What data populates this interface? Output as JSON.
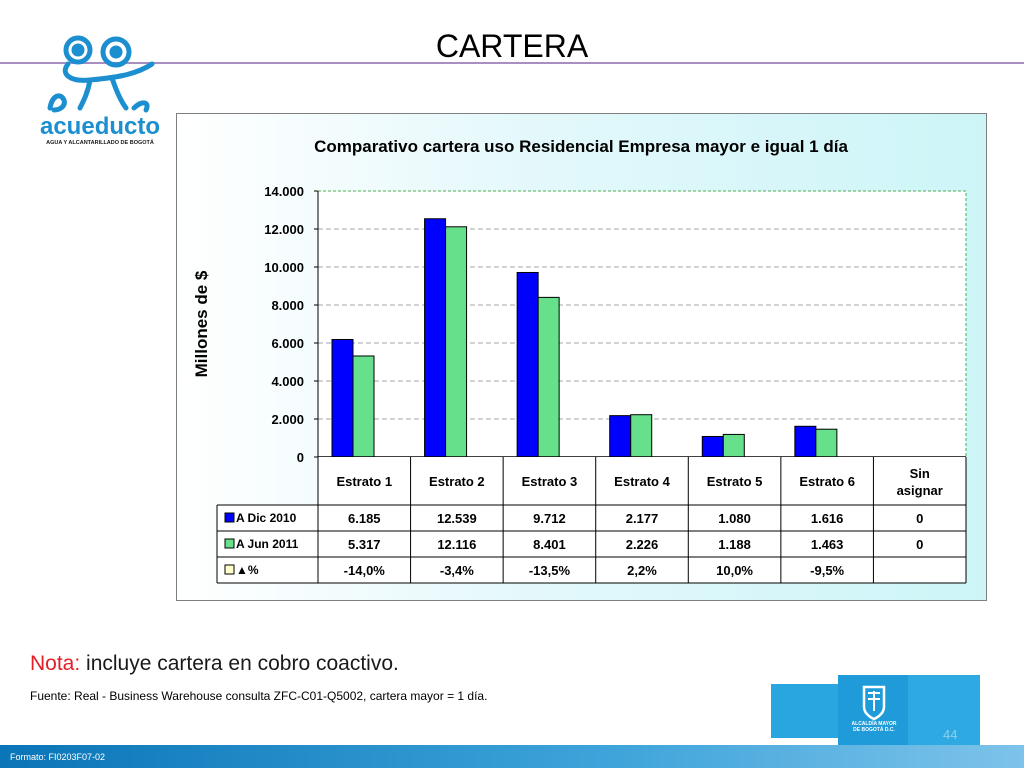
{
  "slide": {
    "title": "CARTERA",
    "nota_label": "Nota:",
    "nota_text": " incluye cartera en cobro coactivo.",
    "fuente": "Fuente: Real - Business Warehouse consulta ZFC-C01-Q5002, cartera mayor = 1 día.",
    "formato": "Formato: FI0203F07-02",
    "page_number": "44"
  },
  "logo": {
    "name": "acueducto",
    "tagline": "AGUA Y ALCANTARILLADO DE BOGOTÁ",
    "color": "#1c8fd0"
  },
  "seal": {
    "line1": "ALCALDÍA MAYOR",
    "line2": "DE BOGOTÁ D.C."
  },
  "chart_data": {
    "type": "bar",
    "title": "Comparativo cartera uso Residencial Empresa mayor e igual 1 día",
    "ylabel": "Millones de $",
    "xlabel": "",
    "ylim": [
      0,
      14000
    ],
    "y_ticks": [
      "0",
      "2.000",
      "4.000",
      "6.000",
      "8.000",
      "10.000",
      "12.000",
      "14.000"
    ],
    "grid": true,
    "legend": "table",
    "categories": [
      "Estrato 1",
      "Estrato 2",
      "Estrato 3",
      "Estrato 4",
      "Estrato 5",
      "Estrato 6",
      "Sin asignar"
    ],
    "series": [
      {
        "name": "A Dic 2010",
        "color": "#0000ff",
        "values": [
          6185,
          12539,
          9712,
          2177,
          1080,
          1616,
          0
        ],
        "labels": [
          "6.185",
          "12.539",
          "9.712",
          "2.177",
          "1.080",
          "1.616",
          "0"
        ]
      },
      {
        "name": "A  Jun 2011",
        "color": "#66e08a",
        "values": [
          5317,
          12116,
          8401,
          2226,
          1188,
          1463,
          0
        ],
        "labels": [
          "5.317",
          "12.116",
          "8.401",
          "2.226",
          "1.188",
          "1.463",
          "0"
        ]
      },
      {
        "name": "▲%",
        "color": "#ffffcc",
        "values": [
          -14.0,
          -3.4,
          -13.5,
          2.2,
          10.0,
          -9.5,
          null
        ],
        "labels": [
          "-14,0%",
          "-3,4%",
          "-13,5%",
          "2,2%",
          "10,0%",
          "-9,5%",
          ""
        ]
      }
    ]
  }
}
